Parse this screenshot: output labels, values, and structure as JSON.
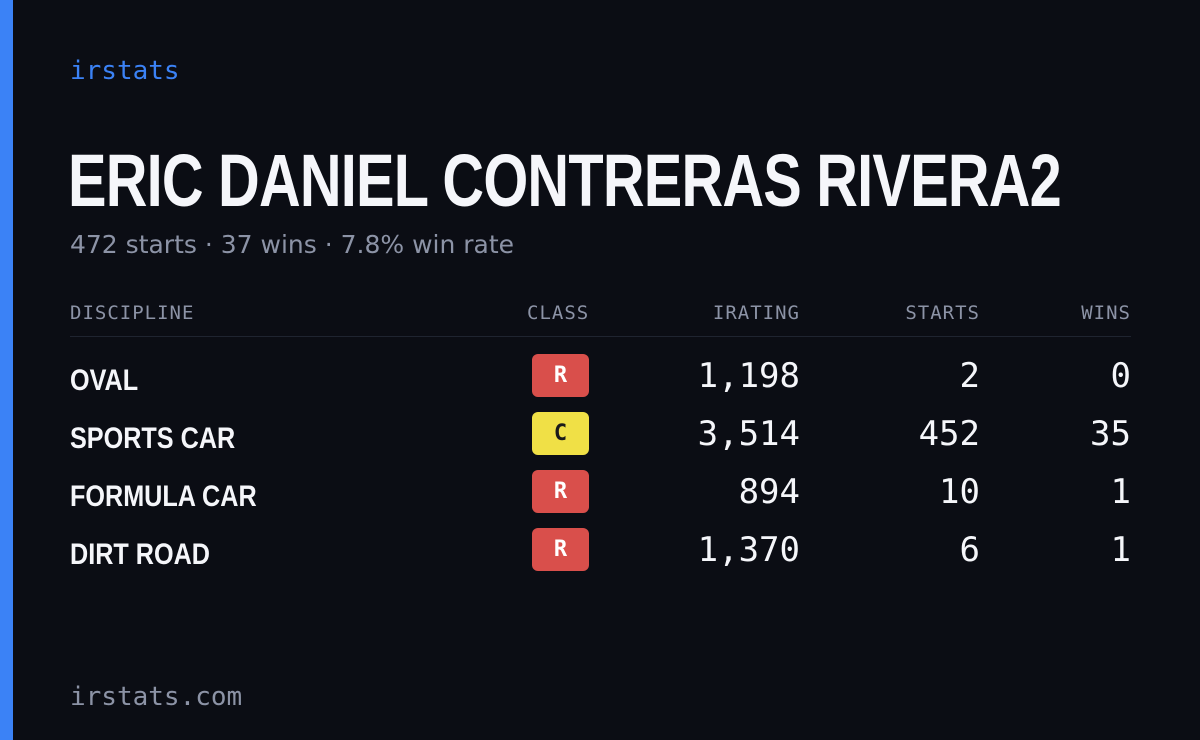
{
  "brand": "irstats",
  "driver_name": "ERIC DANIEL CONTRERAS RIVERA2",
  "summary": "472 starts · 37 wins · 7.8% win rate",
  "table": {
    "headers": {
      "discipline": "DISCIPLINE",
      "class": "CLASS",
      "irating": "IRATING",
      "starts": "STARTS",
      "wins": "WINS"
    },
    "rows": [
      {
        "discipline": "OVAL",
        "class": "R",
        "irating": "1,198",
        "starts": "2",
        "wins": "0"
      },
      {
        "discipline": "SPORTS CAR",
        "class": "C",
        "irating": "3,514",
        "starts": "452",
        "wins": "35"
      },
      {
        "discipline": "FORMULA CAR",
        "class": "R",
        "irating": "894",
        "starts": "10",
        "wins": "1"
      },
      {
        "discipline": "DIRT ROAD",
        "class": "R",
        "irating": "1,370",
        "starts": "6",
        "wins": "1"
      }
    ]
  },
  "footer": "irstats.com",
  "colors": {
    "accent": "#3b82f6",
    "class_r": "#d94f4b",
    "class_c": "#f0e046",
    "background": "#0b0d14"
  }
}
